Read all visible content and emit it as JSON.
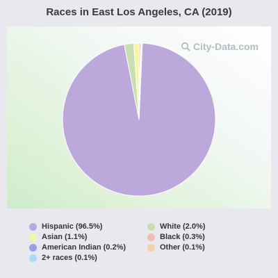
{
  "watermark": "City-Data.com",
  "chart_data": {
    "type": "pie",
    "title": "Races in East Los Angeles, CA (2019)",
    "legend_position": "bottom",
    "slices": [
      {
        "label": "Hispanic (96.5%)",
        "name": "Hispanic",
        "value": 96.5,
        "color": "#bca8db"
      },
      {
        "label": "White (2.0%)",
        "name": "White",
        "value": 2.0,
        "color": "#c9dfb1"
      },
      {
        "label": "Asian (1.1%)",
        "name": "Asian",
        "value": 1.1,
        "color": "#f4f7a0"
      },
      {
        "label": "Black (0.3%)",
        "name": "Black",
        "value": 0.3,
        "color": "#f2bcb0"
      },
      {
        "label": "American Indian (0.2%)",
        "name": "American Indian",
        "value": 0.2,
        "color": "#9a9ee6"
      },
      {
        "label": "Other (0.1%)",
        "name": "Other",
        "value": 0.1,
        "color": "#f3d3a6"
      },
      {
        "label": "2+ races (0.1%)",
        "name": "2+ races",
        "value": 0.1,
        "color": "#acdcf2"
      }
    ]
  }
}
